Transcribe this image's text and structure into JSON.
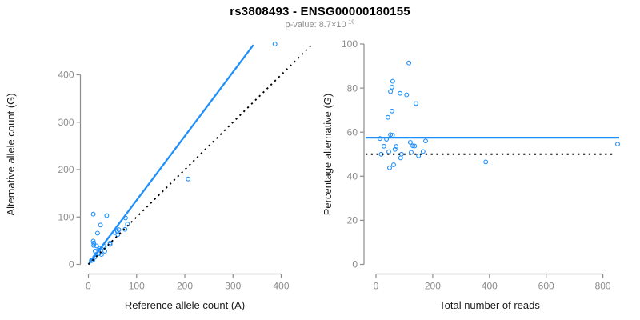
{
  "header": {
    "title": "rs3808493 - ENSG00000180155",
    "pvalue_text": "p-value: 8.7×10",
    "pvalue_exponent": "-19"
  },
  "colors": {
    "accent_blue": "#1f8ffb",
    "axis_gray": "#8c8c8c",
    "dotted_black": "#000000"
  },
  "chart_data": [
    {
      "type": "scatter",
      "xlabel": "Reference allele count (A)",
      "ylabel": "Alternative allele count (G)",
      "xticks": [
        0,
        100,
        200,
        300,
        400
      ],
      "yticks": [
        0,
        100,
        200,
        300,
        400
      ],
      "xlim": [
        0,
        464
      ],
      "ylim": [
        0,
        478
      ],
      "grid": false,
      "point_color": "#1f8ffb",
      "points_x": [
        10,
        10,
        11,
        11,
        19,
        25,
        38,
        17,
        14,
        21,
        24,
        6,
        13,
        16,
        33,
        54,
        60,
        63,
        77,
        387,
        9,
        22,
        32,
        45,
        61,
        76,
        81,
        45,
        207,
        27,
        34
      ],
      "points_y": [
        106,
        49,
        45,
        40,
        66,
        83,
        103,
        39,
        28,
        30,
        34,
        8,
        15,
        21,
        38,
        67,
        70,
        73,
        98,
        465,
        9,
        23,
        35,
        45,
        63,
        74,
        85,
        42,
        180,
        21,
        28
      ],
      "lines": [
        {
          "name": "fit-line",
          "style": "solid",
          "color": "#1f8ffb",
          "slope": 1.353,
          "intercept": 0
        },
        {
          "name": "identity-line",
          "style": "dotted",
          "color": "#000000",
          "slope": 1,
          "intercept": 0
        }
      ]
    },
    {
      "type": "scatter",
      "xlabel": "Total number of reads",
      "ylabel": "Percentage alternative (G)",
      "xticks": [
        0,
        200,
        400,
        600,
        800
      ],
      "yticks": [
        0,
        20,
        40,
        60,
        80,
        100
      ],
      "xlim": [
        0,
        860
      ],
      "ylim": [
        0,
        100
      ],
      "grid": false,
      "point_color": "#1f8ffb",
      "points_x": [
        116,
        59,
        56,
        51,
        85,
        108,
        141,
        56,
        42,
        51,
        58,
        14,
        28,
        37,
        71,
        121,
        130,
        136,
        175,
        852,
        18,
        45,
        67,
        90,
        124,
        150,
        166,
        87,
        387,
        48,
        62
      ],
      "points_y": [
        91.4,
        83.1,
        80.4,
        78.4,
        77.6,
        76.9,
        73.0,
        69.6,
        66.7,
        58.8,
        58.6,
        57.1,
        53.6,
        56.8,
        53.5,
        55.4,
        53.8,
        53.7,
        56.0,
        54.6,
        50.0,
        51.1,
        52.2,
        50.0,
        50.8,
        49.3,
        51.2,
        48.3,
        46.5,
        43.8,
        45.2
      ],
      "lines": [
        {
          "name": "mean-line",
          "style": "solid",
          "color": "#1f8ffb",
          "y": 57.5
        },
        {
          "name": "null-line",
          "style": "dotted",
          "color": "#000000",
          "y": 50
        }
      ]
    }
  ]
}
